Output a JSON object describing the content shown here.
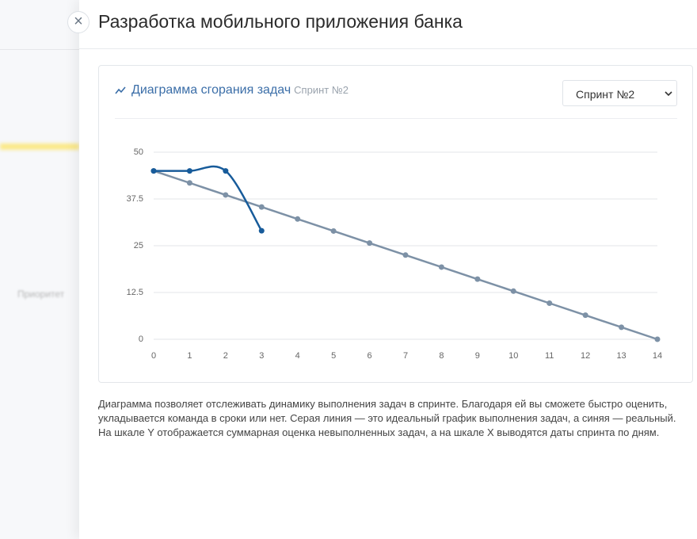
{
  "header": {
    "title": "Разработка мобильного приложения банка"
  },
  "sidebar": {
    "label": "Приоритет"
  },
  "card": {
    "title": "Диаграмма сгорания задач",
    "subtitle": "Спринт №2",
    "select": "Спринт №2"
  },
  "chart_data": {
    "type": "line",
    "x": [
      0,
      1,
      2,
      3,
      4,
      5,
      6,
      7,
      8,
      9,
      10,
      11,
      12,
      13,
      14
    ],
    "xlim": [
      0,
      14
    ],
    "xticks": [
      0,
      1,
      2,
      3,
      4,
      5,
      6,
      7,
      8,
      9,
      10,
      11,
      12,
      13,
      14
    ],
    "ylim": [
      0,
      50
    ],
    "yticks": [
      0,
      12.5,
      25,
      37.5,
      50
    ],
    "grid": true,
    "series": [
      {
        "color": "#7d91a6",
        "smooth": false,
        "values": [
          45,
          41.79,
          38.57,
          35.36,
          32.14,
          28.93,
          25.71,
          22.5,
          19.29,
          16.07,
          12.86,
          9.64,
          6.43,
          3.21,
          0
        ]
      },
      {
        "color": "#175b9a",
        "smooth": true,
        "values": [
          45,
          45,
          45,
          29,
          null,
          null,
          null,
          null,
          null,
          null,
          null,
          null,
          null,
          null,
          null
        ]
      }
    ]
  },
  "description": "Диаграмма позволяет отслеживать динамику выполнения задач в спринте. Благодаря ей вы сможете быстро оценить, укладывается команда в сроки или нет. Серая линия — это идеальный график выполнения задач, а синяя — реальный. На шкале Y отображается суммарная оценка невыполненных задач, а на шкале X выводятся даты спринта по дням."
}
